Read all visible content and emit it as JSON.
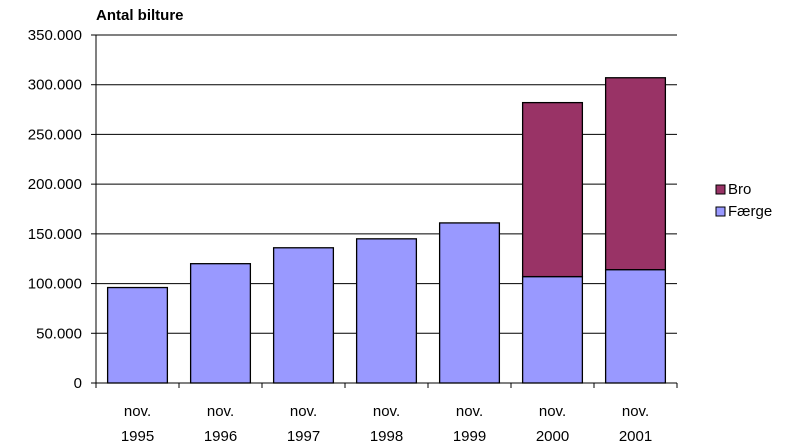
{
  "chart_data": {
    "type": "bar",
    "stacked": true,
    "title": "",
    "ylabel": "Antal bilture",
    "xlabel": "",
    "categories": [
      [
        "nov.",
        "1995"
      ],
      [
        "nov.",
        "1996"
      ],
      [
        "nov.",
        "1997"
      ],
      [
        "nov.",
        "1998"
      ],
      [
        "nov.",
        "1999"
      ],
      [
        "nov.",
        "2000"
      ],
      [
        "nov.",
        "2001"
      ]
    ],
    "series": [
      {
        "name": "Færge",
        "color": "#9999ff",
        "values": [
          96000,
          120000,
          136000,
          145000,
          161000,
          107000,
          114000
        ]
      },
      {
        "name": "Bro",
        "color": "#993366",
        "values": [
          0,
          0,
          0,
          0,
          0,
          175000,
          193000
        ]
      }
    ],
    "ylim": [
      0,
      350000
    ],
    "yticks": [
      {
        "value": 0,
        "label": "0"
      },
      {
        "value": 50000,
        "label": "50.000"
      },
      {
        "value": 100000,
        "label": "100.000"
      },
      {
        "value": 150000,
        "label": "150.000"
      },
      {
        "value": 200000,
        "label": "200.000"
      },
      {
        "value": 250000,
        "label": "250.000"
      },
      {
        "value": 300000,
        "label": "300.000"
      },
      {
        "value": 350000,
        "label": "350.000"
      }
    ],
    "grid": true,
    "legend": {
      "position": "right",
      "entries": [
        "Bro",
        "Færge"
      ]
    }
  }
}
